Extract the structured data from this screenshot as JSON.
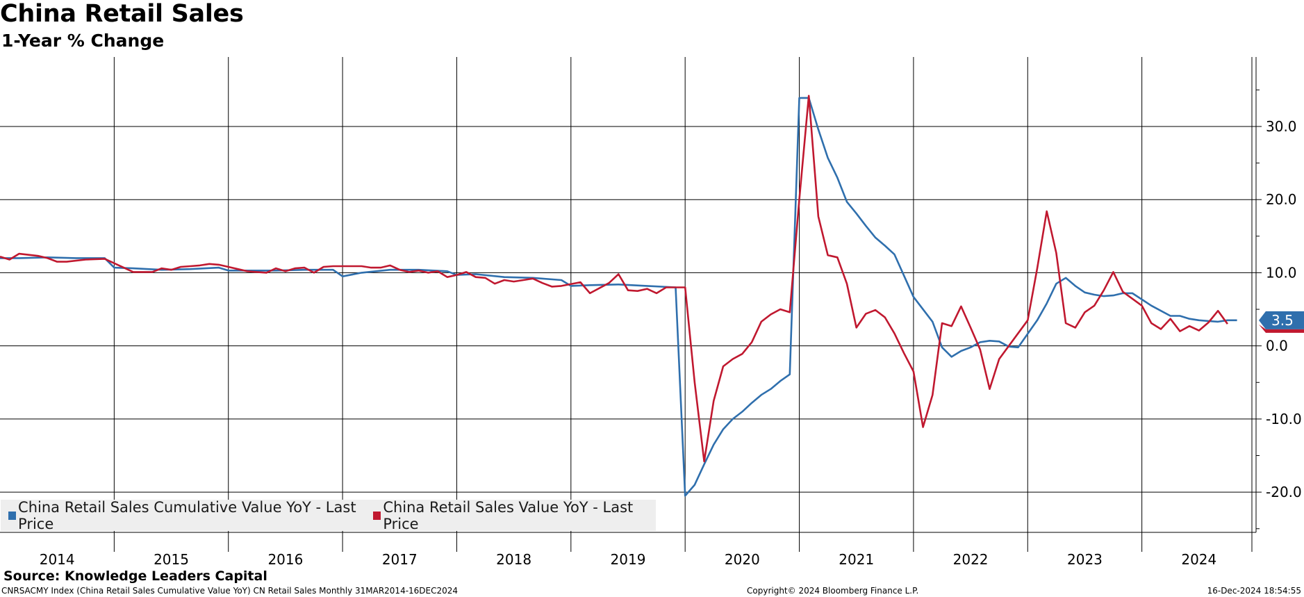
{
  "header": {
    "title": "China Retail Sales",
    "subtitle": "1-Year % Change"
  },
  "source": "Source: Knowledge Leaders Capital",
  "footer": {
    "left": "CNRSACMY Index (China Retail Sales Cumulative Value YoY) CN Retail Sales  Monthly 31MAR2014-16DEC2024",
    "middle": "Copyright© 2024 Bloomberg Finance L.P.",
    "right": "16-Dec-2024 18:54:55"
  },
  "colors": {
    "cumulative": "#2f6fad",
    "monthly": "#c0182f",
    "grid": "#000000",
    "legend_bg": "#eeeeee",
    "label_badge": "#2f6fad"
  },
  "chart_data": {
    "type": "line",
    "title": "China Retail Sales",
    "subtitle": "1-Year % Change",
    "xlabel": "",
    "ylabel": "",
    "x_tick_labels": [
      "2014",
      "2015",
      "2016",
      "2017",
      "2018",
      "2019",
      "2020",
      "2021",
      "2022",
      "2023",
      "2024"
    ],
    "y_ticks": [
      30.0,
      20.0,
      10.0,
      0.0,
      -10.0,
      -20.0
    ],
    "y_tick_labels": [
      "30.0",
      "20.0",
      "10.0",
      "0.0",
      "-10.0",
      "-20.0"
    ],
    "ylim": [
      -25.5,
      39.5
    ],
    "xlim": [
      "2014-01",
      "2025-01"
    ],
    "grid": true,
    "legend_position": "bottom-left",
    "last_value_label": "3.5",
    "series": [
      {
        "name": "China Retail Sales Cumulative Value YoY - Last Price",
        "color": "#2f6fad",
        "points": [
          [
            "2014-01",
            12.0
          ],
          [
            "2014-03",
            12.0
          ],
          [
            "2014-06",
            12.1
          ],
          [
            "2014-09",
            12.0
          ],
          [
            "2014-12",
            12.0
          ],
          [
            "2015-01",
            10.7
          ],
          [
            "2015-03",
            10.6
          ],
          [
            "2015-06",
            10.4
          ],
          [
            "2015-09",
            10.5
          ],
          [
            "2015-12",
            10.7
          ],
          [
            "2016-01",
            10.3
          ],
          [
            "2016-03",
            10.3
          ],
          [
            "2016-06",
            10.3
          ],
          [
            "2016-09",
            10.4
          ],
          [
            "2016-12",
            10.4
          ],
          [
            "2017-01",
            9.5
          ],
          [
            "2017-03",
            10.0
          ],
          [
            "2017-06",
            10.4
          ],
          [
            "2017-09",
            10.4
          ],
          [
            "2017-12",
            10.2
          ],
          [
            "2018-01",
            9.7
          ],
          [
            "2018-03",
            9.8
          ],
          [
            "2018-06",
            9.4
          ],
          [
            "2018-09",
            9.3
          ],
          [
            "2018-12",
            9.0
          ],
          [
            "2019-01",
            8.2
          ],
          [
            "2019-03",
            8.3
          ],
          [
            "2019-06",
            8.4
          ],
          [
            "2019-09",
            8.2
          ],
          [
            "2019-12",
            8.0
          ],
          [
            "2020-01",
            -20.5
          ],
          [
            "2020-02",
            -19.0
          ],
          [
            "2020-03",
            -16.2
          ],
          [
            "2020-04",
            -13.5
          ],
          [
            "2020-05",
            -11.4
          ],
          [
            "2020-06",
            -10.0
          ],
          [
            "2020-07",
            -9.0
          ],
          [
            "2020-08",
            -7.8
          ],
          [
            "2020-09",
            -6.7
          ],
          [
            "2020-10",
            -5.9
          ],
          [
            "2020-11",
            -4.8
          ],
          [
            "2020-12",
            -3.9
          ],
          [
            "2021-01",
            33.9
          ],
          [
            "2021-02",
            33.9
          ],
          [
            "2021-03",
            29.6
          ],
          [
            "2021-04",
            25.7
          ],
          [
            "2021-05",
            23.0
          ],
          [
            "2021-06",
            19.7
          ],
          [
            "2021-07",
            18.1
          ],
          [
            "2021-08",
            16.4
          ],
          [
            "2021-09",
            14.8
          ],
          [
            "2021-10",
            13.7
          ],
          [
            "2021-11",
            12.5
          ],
          [
            "2022-01",
            6.7
          ],
          [
            "2022-03",
            3.3
          ],
          [
            "2022-04",
            -0.2
          ],
          [
            "2022-05",
            -1.5
          ],
          [
            "2022-06",
            -0.7
          ],
          [
            "2022-07",
            -0.2
          ],
          [
            "2022-08",
            0.5
          ],
          [
            "2022-09",
            0.7
          ],
          [
            "2022-10",
            0.6
          ],
          [
            "2022-11",
            -0.1
          ],
          [
            "2022-12",
            -0.2
          ],
          [
            "2023-02",
            3.5
          ],
          [
            "2023-03",
            5.8
          ],
          [
            "2023-04",
            8.5
          ],
          [
            "2023-05",
            9.3
          ],
          [
            "2023-06",
            8.2
          ],
          [
            "2023-07",
            7.3
          ],
          [
            "2023-08",
            7.0
          ],
          [
            "2023-09",
            6.8
          ],
          [
            "2023-10",
            6.9
          ],
          [
            "2023-11",
            7.2
          ],
          [
            "2023-12",
            7.2
          ],
          [
            "2024-02",
            5.5
          ],
          [
            "2024-04",
            4.1
          ],
          [
            "2024-05",
            4.1
          ],
          [
            "2024-06",
            3.7
          ],
          [
            "2024-07",
            3.5
          ],
          [
            "2024-08",
            3.4
          ],
          [
            "2024-09",
            3.3
          ],
          [
            "2024-10",
            3.5
          ],
          [
            "2024-11",
            3.5
          ]
        ]
      },
      {
        "name": "China Retail Sales Value YoY - Last Price",
        "color": "#c0182f",
        "points": [
          [
            "2014-01",
            12.2
          ],
          [
            "2014-02",
            11.8
          ],
          [
            "2014-03",
            12.6
          ],
          [
            "2014-05",
            12.3
          ],
          [
            "2014-06",
            12.0
          ],
          [
            "2014-07",
            11.5
          ],
          [
            "2014-08",
            11.5
          ],
          [
            "2014-10",
            11.8
          ],
          [
            "2014-12",
            11.9
          ],
          [
            "2015-02",
            10.7
          ],
          [
            "2015-03",
            10.1
          ],
          [
            "2015-05",
            10.1
          ],
          [
            "2015-06",
            10.6
          ],
          [
            "2015-07",
            10.4
          ],
          [
            "2015-08",
            10.8
          ],
          [
            "2015-09",
            10.9
          ],
          [
            "2015-10",
            11.0
          ],
          [
            "2015-11",
            11.2
          ],
          [
            "2015-12",
            11.1
          ],
          [
            "2016-01",
            10.8
          ],
          [
            "2016-02",
            10.5
          ],
          [
            "2016-03",
            10.2
          ],
          [
            "2016-04",
            10.1
          ],
          [
            "2016-05",
            10.0
          ],
          [
            "2016-06",
            10.6
          ],
          [
            "2016-07",
            10.2
          ],
          [
            "2016-08",
            10.6
          ],
          [
            "2016-09",
            10.7
          ],
          [
            "2016-10",
            10.0
          ],
          [
            "2016-11",
            10.8
          ],
          [
            "2016-12",
            10.9
          ],
          [
            "2017-03",
            10.9
          ],
          [
            "2017-04",
            10.7
          ],
          [
            "2017-05",
            10.7
          ],
          [
            "2017-06",
            11.0
          ],
          [
            "2017-07",
            10.4
          ],
          [
            "2017-08",
            10.1
          ],
          [
            "2017-09",
            10.3
          ],
          [
            "2017-10",
            10.0
          ],
          [
            "2017-11",
            10.2
          ],
          [
            "2017-12",
            9.4
          ],
          [
            "2018-01",
            9.7
          ],
          [
            "2018-02",
            10.1
          ],
          [
            "2018-03",
            9.4
          ],
          [
            "2018-04",
            9.3
          ],
          [
            "2018-05",
            8.5
          ],
          [
            "2018-06",
            9.0
          ],
          [
            "2018-07",
            8.8
          ],
          [
            "2018-08",
            9.0
          ],
          [
            "2018-09",
            9.2
          ],
          [
            "2018-10",
            8.6
          ],
          [
            "2018-11",
            8.1
          ],
          [
            "2018-12",
            8.2
          ],
          [
            "2019-02",
            8.7
          ],
          [
            "2019-03",
            7.2
          ],
          [
            "2019-05",
            8.6
          ],
          [
            "2019-06",
            9.8
          ],
          [
            "2019-07",
            7.6
          ],
          [
            "2019-08",
            7.5
          ],
          [
            "2019-09",
            7.8
          ],
          [
            "2019-10",
            7.2
          ],
          [
            "2019-11",
            8.0
          ],
          [
            "2019-12",
            8.0
          ],
          [
            "2020-01",
            8.0
          ],
          [
            "2020-02",
            -5.0
          ],
          [
            "2020-03",
            -15.8
          ],
          [
            "2020-04",
            -7.5
          ],
          [
            "2020-05",
            -2.8
          ],
          [
            "2020-06",
            -1.8
          ],
          [
            "2020-07",
            -1.1
          ],
          [
            "2020-08",
            0.5
          ],
          [
            "2020-09",
            3.3
          ],
          [
            "2020-10",
            4.3
          ],
          [
            "2020-11",
            5.0
          ],
          [
            "2020-12",
            4.6
          ],
          [
            "2021-01",
            20.0
          ],
          [
            "2021-02",
            34.2
          ],
          [
            "2021-03",
            17.7
          ],
          [
            "2021-04",
            12.4
          ],
          [
            "2021-05",
            12.1
          ],
          [
            "2021-06",
            8.5
          ],
          [
            "2021-07",
            2.5
          ],
          [
            "2021-08",
            4.4
          ],
          [
            "2021-09",
            4.9
          ],
          [
            "2021-10",
            3.9
          ],
          [
            "2021-11",
            1.7
          ],
          [
            "2021-12",
            -1.0
          ],
          [
            "2022-01",
            -3.5
          ],
          [
            "2022-02",
            -11.1
          ],
          [
            "2022-03",
            -6.7
          ],
          [
            "2022-04",
            3.1
          ],
          [
            "2022-05",
            2.7
          ],
          [
            "2022-06",
            5.4
          ],
          [
            "2022-07",
            2.5
          ],
          [
            "2022-08",
            -0.5
          ],
          [
            "2022-09",
            -5.9
          ],
          [
            "2022-10",
            -1.8
          ],
          [
            "2023-01",
            3.5
          ],
          [
            "2023-02",
            10.6
          ],
          [
            "2023-03",
            18.4
          ],
          [
            "2023-04",
            12.7
          ],
          [
            "2023-05",
            3.1
          ],
          [
            "2023-06",
            2.5
          ],
          [
            "2023-07",
            4.6
          ],
          [
            "2023-08",
            5.5
          ],
          [
            "2023-09",
            7.6
          ],
          [
            "2023-10",
            10.1
          ],
          [
            "2023-11",
            7.4
          ],
          [
            "2024-01",
            5.5
          ],
          [
            "2024-02",
            3.1
          ],
          [
            "2024-03",
            2.3
          ],
          [
            "2024-04",
            3.7
          ],
          [
            "2024-05",
            2.0
          ],
          [
            "2024-06",
            2.7
          ],
          [
            "2024-07",
            2.1
          ],
          [
            "2024-08",
            3.2
          ],
          [
            "2024-09",
            4.8
          ],
          [
            "2024-10",
            3.0
          ]
        ]
      }
    ]
  }
}
